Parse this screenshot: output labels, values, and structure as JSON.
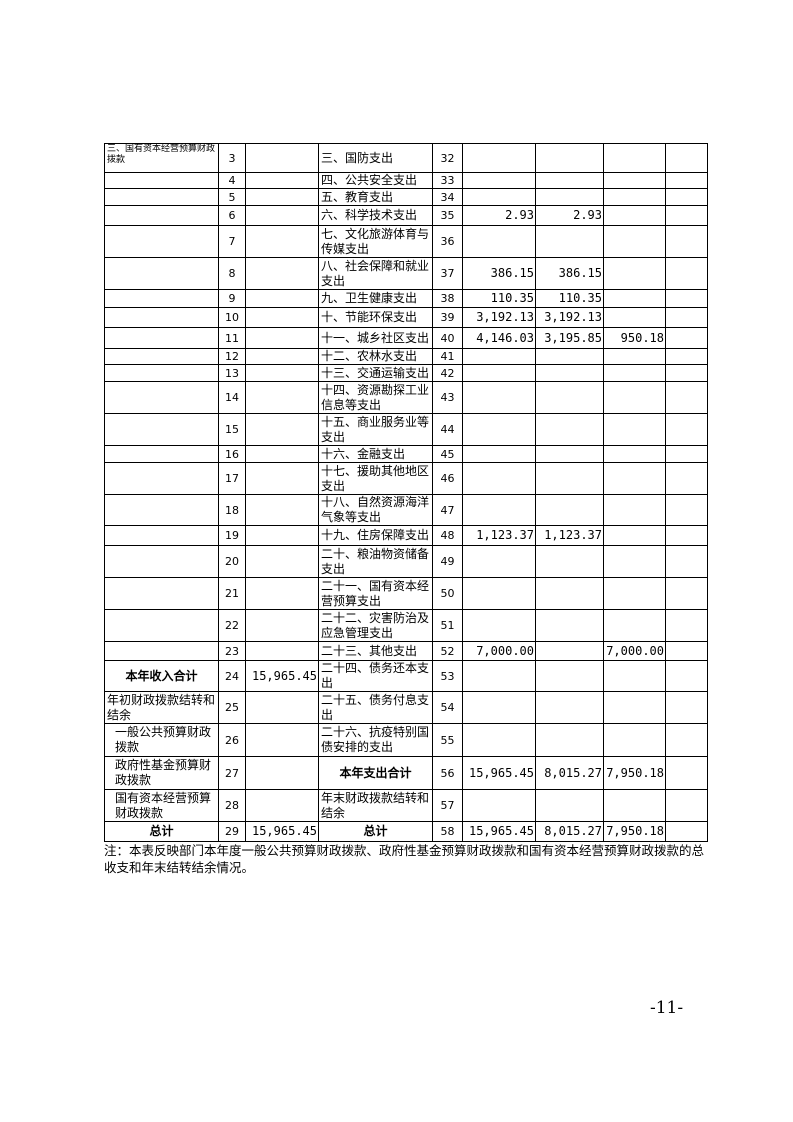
{
  "table": {
    "rows": [
      [
        "三、国有资本经营预算财政拨款",
        "3",
        null,
        "三、国防支出",
        "32",
        null,
        null,
        null,
        null
      ],
      [
        null,
        "4",
        null,
        "四、公共安全支出",
        "33",
        null,
        null,
        null,
        null
      ],
      [
        null,
        "5",
        null,
        "五、教育支出",
        "34",
        null,
        null,
        null,
        null
      ],
      [
        null,
        "6",
        null,
        "六、科学技术支出",
        "35",
        "2.93",
        "2.93",
        null,
        null
      ],
      [
        null,
        "7",
        null,
        "七、文化旅游体育与传媒支出",
        "36",
        null,
        null,
        null,
        null
      ],
      [
        null,
        "8",
        null,
        "八、社会保障和就业支出",
        "37",
        "386.15",
        "386.15",
        null,
        null
      ],
      [
        null,
        "9",
        null,
        "九、卫生健康支出",
        "38",
        "110.35",
        "110.35",
        null,
        null
      ],
      [
        null,
        "10",
        null,
        "十、节能环保支出",
        "39",
        "3,192.13",
        "3,192.13",
        null,
        null
      ],
      [
        null,
        "11",
        null,
        "十一、城乡社区支出",
        "40",
        "4,146.03",
        "3,195.85",
        "950.18",
        null
      ],
      [
        null,
        "12",
        null,
        "十二、农林水支出",
        "41",
        null,
        null,
        null,
        null
      ],
      [
        null,
        "13",
        null,
        "十三、交通运输支出",
        "42",
        null,
        null,
        null,
        null
      ],
      [
        null,
        "14",
        null,
        "十四、资源勘探工业信息等支出",
        "43",
        null,
        null,
        null,
        null
      ],
      [
        null,
        "15",
        null,
        "十五、商业服务业等支出",
        "44",
        null,
        null,
        null,
        null
      ],
      [
        null,
        "16",
        null,
        "十六、金融支出",
        "45",
        null,
        null,
        null,
        null
      ],
      [
        null,
        "17",
        null,
        "十七、援助其他地区支出",
        "46",
        null,
        null,
        null,
        null
      ],
      [
        null,
        "18",
        null,
        "十八、自然资源海洋气象等支出",
        "47",
        null,
        null,
        null,
        null
      ],
      [
        null,
        "19",
        null,
        "十九、住房保障支出",
        "48",
        "1,123.37",
        "1,123.37",
        null,
        null
      ],
      [
        null,
        "20",
        null,
        "二十、粮油物资储备支出",
        "49",
        null,
        null,
        null,
        null
      ],
      [
        null,
        "21",
        null,
        "二十一、国有资本经营预算支出",
        "50",
        null,
        null,
        null,
        null
      ],
      [
        null,
        "22",
        null,
        "二十二、灾害防治及应急管理支出",
        "51",
        null,
        null,
        null,
        null
      ],
      [
        null,
        "23",
        null,
        "二十三、其他支出",
        "52",
        "7,000.00",
        null,
        "7,000.00",
        null
      ],
      [
        "本年收入合计",
        "24",
        "15,965.45",
        "二十四、债务还本支出",
        "53",
        null,
        null,
        null,
        null
      ],
      [
        "年初财政拨款结转和结余",
        "25",
        null,
        "二十五、债务付息支出",
        "54",
        null,
        null,
        null,
        null
      ],
      [
        "一般公共预算财政拨款",
        "26",
        null,
        "二十六、抗疫特别国债安排的支出",
        "55",
        null,
        null,
        null,
        null
      ],
      [
        "政府性基金预算财政拨款",
        "27",
        null,
        "本年支出合计",
        "56",
        "15,965.45",
        "8,015.27",
        "7,950.18",
        null
      ],
      [
        "国有资本经营预算财政拨款",
        "28",
        null,
        "年末财政拨款结转和结余",
        "57",
        null,
        null,
        null,
        null
      ],
      [
        "总计",
        "29",
        "15,965.45",
        "总计",
        "58",
        "15,965.45",
        "8,015.27",
        "7,950.18",
        null
      ]
    ]
  },
  "note": "注：本表反映部门本年度一般公共预算财政拨款、政府性基金预算财政拨款和国有资本经营预算财政拨款的总收支和年末结转结余情况。",
  "page_number": "-11-"
}
